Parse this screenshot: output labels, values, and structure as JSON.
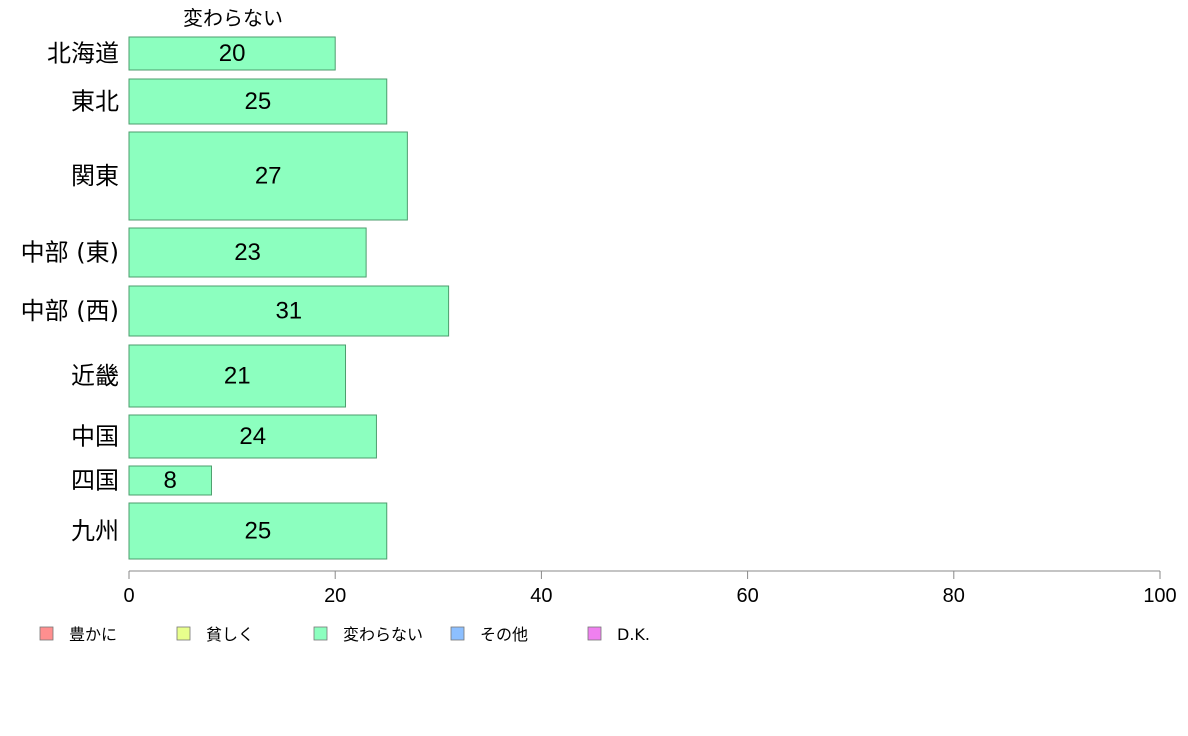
{
  "chart_data": {
    "type": "bar",
    "orientation": "horizontal",
    "series_title": "変わらない",
    "categories": [
      "北海道",
      "東北",
      "関東",
      "中部 (東)",
      "中部 (西)",
      "近畿",
      "中国",
      "四国",
      "九州"
    ],
    "values": [
      20,
      25,
      27,
      23,
      31,
      21,
      24,
      8,
      25
    ],
    "bar_color": "#8cffbf",
    "bar_stroke": "#4d9e6e",
    "xlim": [
      0,
      100
    ],
    "xticks": [
      0,
      20,
      40,
      60,
      80,
      100
    ],
    "grid": false,
    "legend_position": "bottom",
    "legend": [
      {
        "label": "豊かに",
        "color": "#ff8f8f"
      },
      {
        "label": "貧しく",
        "color": "#e8ff8c"
      },
      {
        "label": "変わらない",
        "color": "#8cffbf"
      },
      {
        "label": "その他",
        "color": "#8cbfff"
      },
      {
        "label": "D.K.",
        "color": "#ef80ef"
      }
    ]
  }
}
